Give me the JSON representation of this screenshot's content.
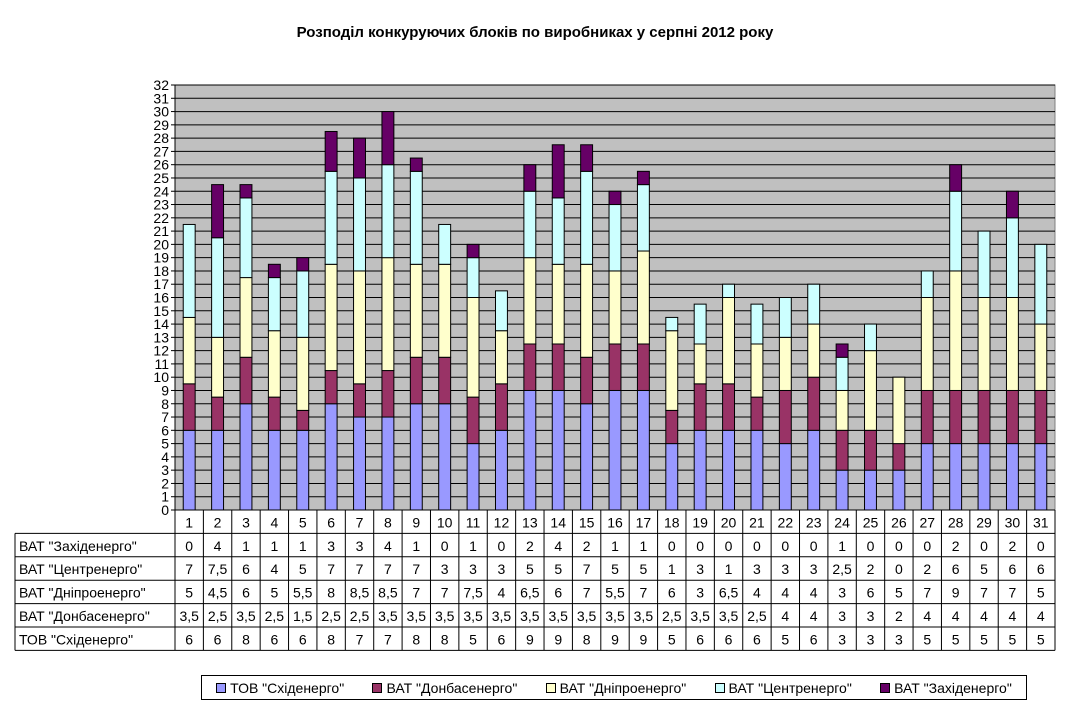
{
  "chart_data": {
    "type": "bar",
    "stacked": true,
    "title": "Розподіл конкуруючих блоків по виробниках у серпні 2012 року",
    "xlabel": "",
    "ylabel": "",
    "ylim": [
      0,
      32
    ],
    "y_ticks": [
      "0",
      "1",
      "2",
      "3",
      "4",
      "5",
      "6",
      "7",
      "8",
      "9",
      "10",
      "11",
      "12",
      "13",
      "14",
      "15",
      "16",
      "17",
      "18",
      "19",
      "20",
      "21",
      "22",
      "23",
      "24",
      "25",
      "26",
      "27",
      "28",
      "29",
      "30",
      "31",
      "32"
    ],
    "grid": true,
    "plot_background": "#c0c0c0",
    "legend_position": "bottom",
    "categories": [
      "1",
      "2",
      "3",
      "4",
      "5",
      "6",
      "7",
      "8",
      "9",
      "10",
      "11",
      "12",
      "13",
      "14",
      "15",
      "16",
      "17",
      "18",
      "19",
      "20",
      "21",
      "22",
      "23",
      "24",
      "25",
      "26",
      "27",
      "28",
      "29",
      "30",
      "31"
    ],
    "series": [
      {
        "name": "ТОВ \"Східенерго\"",
        "color": "#9999ff",
        "values": [
          6,
          6,
          8,
          6,
          6,
          8,
          7,
          7,
          8,
          8,
          5,
          6,
          9,
          9,
          8,
          9,
          9,
          5,
          6,
          6,
          6,
          5,
          6,
          3,
          3,
          3,
          5,
          5,
          5,
          5,
          5
        ],
        "labels": [
          "6",
          "6",
          "8",
          "6",
          "6",
          "8",
          "7",
          "7",
          "8",
          "8",
          "5",
          "6",
          "9",
          "9",
          "8",
          "9",
          "9",
          "5",
          "6",
          "6",
          "6",
          "5",
          "6",
          "3",
          "3",
          "3",
          "5",
          "5",
          "5",
          "5",
          "5"
        ]
      },
      {
        "name": "ВАТ \"Донбасенерго\"",
        "color": "#993366",
        "values": [
          3.5,
          2.5,
          3.5,
          2.5,
          1.5,
          2.5,
          2.5,
          3.5,
          3.5,
          3.5,
          3.5,
          3.5,
          3.5,
          3.5,
          3.5,
          3.5,
          3.5,
          2.5,
          3.5,
          3.5,
          2.5,
          4,
          4,
          3,
          3,
          2,
          4,
          4,
          4,
          4,
          4
        ],
        "labels": [
          "3,5",
          "2,5",
          "3,5",
          "2,5",
          "1,5",
          "2,5",
          "2,5",
          "3,5",
          "3,5",
          "3,5",
          "3,5",
          "3,5",
          "3,5",
          "3,5",
          "3,5",
          "3,5",
          "3,5",
          "2,5",
          "3,5",
          "3,5",
          "2,5",
          "4",
          "4",
          "3",
          "3",
          "2",
          "4",
          "4",
          "4",
          "4",
          "4"
        ]
      },
      {
        "name": "ВАТ \"Дніпроенерго\"",
        "color": "#ffffcc",
        "values": [
          5,
          4.5,
          6,
          5,
          5.5,
          8,
          8.5,
          8.5,
          7,
          7,
          7.5,
          4,
          6.5,
          6,
          7,
          5.5,
          7,
          6,
          3,
          6.5,
          4,
          4,
          4,
          3,
          6,
          5,
          7,
          9,
          7,
          7,
          5
        ],
        "labels": [
          "5",
          "4,5",
          "6",
          "5",
          "5,5",
          "8",
          "8,5",
          "8,5",
          "7",
          "7",
          "7,5",
          "4",
          "6,5",
          "6",
          "7",
          "5,5",
          "7",
          "6",
          "3",
          "6,5",
          "4",
          "4",
          "4",
          "3",
          "6",
          "5",
          "7",
          "9",
          "7",
          "7",
          "5"
        ]
      },
      {
        "name": "ВАТ \"Центренерго\"",
        "color": "#ccffff",
        "values": [
          7,
          7.5,
          6,
          4,
          5,
          7,
          7,
          7,
          7,
          3,
          3,
          3,
          5,
          5,
          7,
          5,
          5,
          1,
          3,
          1,
          3,
          3,
          3,
          2.5,
          2,
          0,
          2,
          6,
          5,
          6,
          6
        ],
        "labels": [
          "7",
          "7,5",
          "6",
          "4",
          "5",
          "7",
          "7",
          "7",
          "7",
          "3",
          "3",
          "3",
          "5",
          "5",
          "7",
          "5",
          "5",
          "1",
          "3",
          "1",
          "3",
          "3",
          "3",
          "2,5",
          "2",
          "0",
          "2",
          "6",
          "5",
          "6",
          "6"
        ]
      },
      {
        "name": "ВАТ \"Західенерго\"",
        "color": "#660066",
        "values": [
          0,
          4,
          1,
          1,
          1,
          3,
          3,
          4,
          1,
          0,
          1,
          0,
          2,
          4,
          2,
          1,
          1,
          0,
          0,
          0,
          0,
          0,
          0,
          1,
          0,
          0,
          0,
          2,
          0,
          2,
          0
        ],
        "labels": [
          "0",
          "4",
          "1",
          "1",
          "1",
          "3",
          "3",
          "4",
          "1",
          "0",
          "1",
          "0",
          "2",
          "4",
          "2",
          "1",
          "1",
          "0",
          "0",
          "0",
          "0",
          "0",
          "0",
          "1",
          "0",
          "0",
          "0",
          "2",
          "0",
          "2",
          "0"
        ]
      }
    ],
    "table_row_order": [
      4,
      3,
      2,
      1,
      0
    ]
  }
}
